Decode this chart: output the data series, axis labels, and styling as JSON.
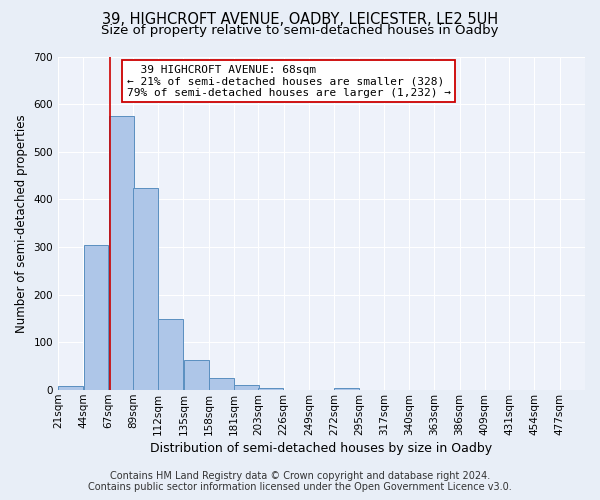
{
  "title_line1": "39, HIGHCROFT AVENUE, OADBY, LEICESTER, LE2 5UH",
  "title_line2": "Size of property relative to semi-detached houses in Oadby",
  "xlabel": "Distribution of semi-detached houses by size in Oadby",
  "ylabel": "Number of semi-detached properties",
  "footer_line1": "Contains HM Land Registry data © Crown copyright and database right 2024.",
  "footer_line2": "Contains public sector information licensed under the Open Government Licence v3.0.",
  "bin_labels": [
    "21sqm",
    "44sqm",
    "67sqm",
    "89sqm",
    "112sqm",
    "135sqm",
    "158sqm",
    "181sqm",
    "203sqm",
    "226sqm",
    "249sqm",
    "272sqm",
    "295sqm",
    "317sqm",
    "340sqm",
    "363sqm",
    "386sqm",
    "409sqm",
    "431sqm",
    "454sqm",
    "477sqm"
  ],
  "bin_edges": [
    21,
    44,
    67,
    89,
    112,
    135,
    158,
    181,
    203,
    226,
    249,
    272,
    295,
    317,
    340,
    363,
    386,
    409,
    431,
    454,
    477
  ],
  "bar_heights": [
    8,
    305,
    575,
    425,
    150,
    63,
    25,
    11,
    4,
    0,
    0,
    5,
    0,
    0,
    0,
    0,
    0,
    0,
    0,
    0
  ],
  "bar_color": "#aec6e8",
  "bar_edge_color": "#5a8fc0",
  "property_size": 68,
  "property_line_color": "#cc0000",
  "annotation_line1": "  39 HIGHCROFT AVENUE: 68sqm",
  "annotation_line2": "← 21% of semi-detached houses are smaller (328)",
  "annotation_line3": "79% of semi-detached houses are larger (1,232) →",
  "annotation_box_color": "#ffffff",
  "annotation_box_edge_color": "#cc0000",
  "ylim": [
    0,
    700
  ],
  "yticks": [
    0,
    100,
    200,
    300,
    400,
    500,
    600,
    700
  ],
  "background_color": "#e8eef7",
  "plot_background_color": "#eef2fa",
  "grid_color": "#ffffff",
  "title_fontsize": 10.5,
  "subtitle_fontsize": 9.5,
  "axis_label_fontsize": 8.5,
  "tick_fontsize": 7.5,
  "annotation_fontsize": 8,
  "footer_fontsize": 7
}
